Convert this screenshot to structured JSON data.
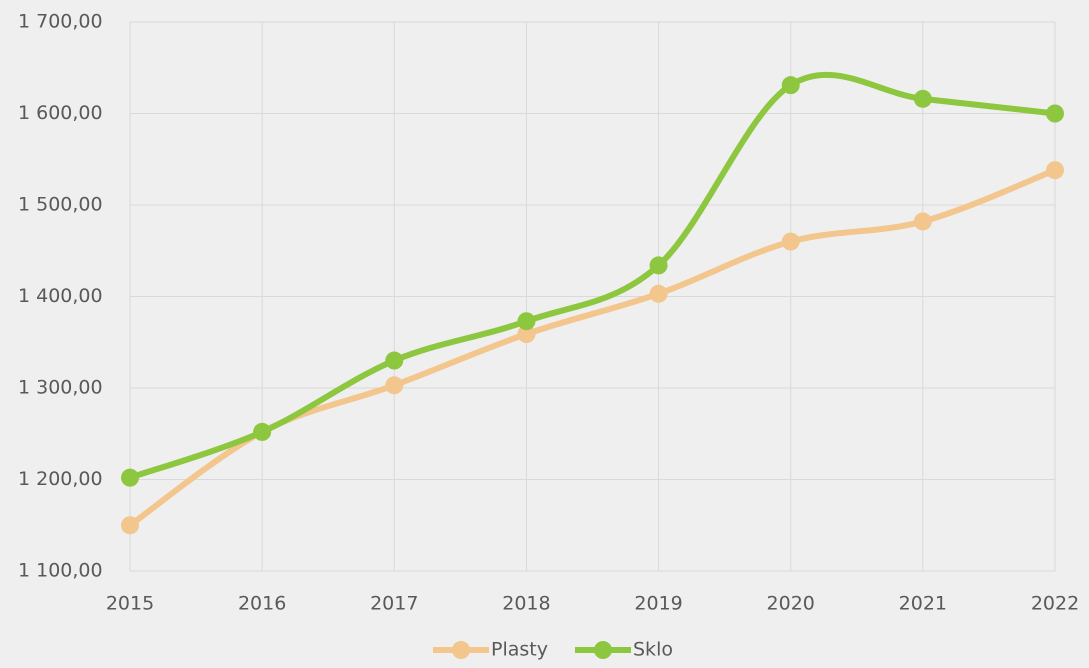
{
  "chart_data": {
    "type": "line",
    "categories": [
      "2015",
      "2016",
      "2017",
      "2018",
      "2019",
      "2020",
      "2021",
      "2022"
    ],
    "series": [
      {
        "name": "Plasty",
        "color": "#f2c68c",
        "values": [
          1150,
          1252,
          1303,
          1359,
          1403,
          1460,
          1482,
          1538
        ]
      },
      {
        "name": "Sklo",
        "color": "#8dc63f",
        "values": [
          1202,
          1252,
          1330,
          1373,
          1434,
          1631,
          1616,
          1600
        ]
      }
    ],
    "ylim": [
      1100,
      1700
    ],
    "yticks": [
      {
        "value": 1100,
        "label": "1 100,00"
      },
      {
        "value": 1200,
        "label": "1 200,00"
      },
      {
        "value": 1300,
        "label": "1 300,00"
      },
      {
        "value": 1400,
        "label": "1 400,00"
      },
      {
        "value": 1500,
        "label": "1 500,00"
      },
      {
        "value": 1600,
        "label": "1 600,00"
      },
      {
        "value": 1700,
        "label": "1 700,00"
      }
    ],
    "grid": true,
    "smooth": true,
    "legend": "bottom"
  }
}
